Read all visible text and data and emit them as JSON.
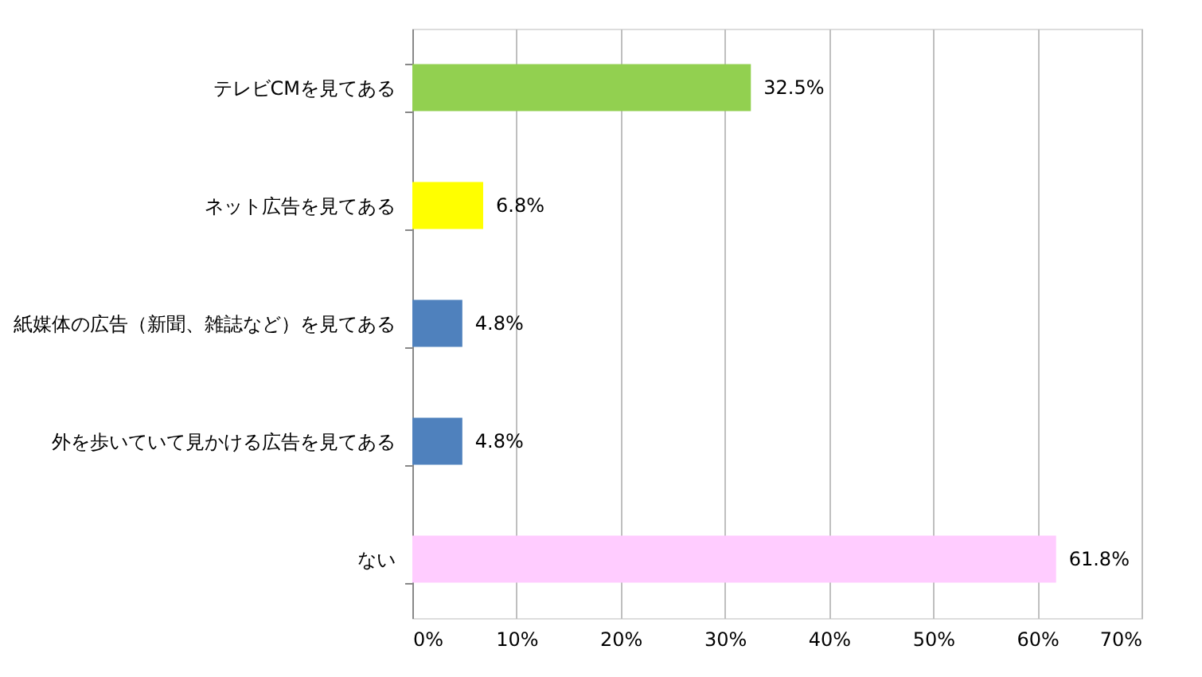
{
  "chart_data": {
    "type": "bar",
    "orientation": "horizontal",
    "categories": [
      "テレビCMを見てある",
      "ネット広告を見てある",
      "紙媒体の広告（新聞、雑誌など）を見てある",
      "外を歩いていて見かける広告を見てある",
      "ない"
    ],
    "values": [
      32.5,
      6.8,
      4.8,
      4.8,
      61.8
    ],
    "colors": [
      "#92d050",
      "#ffff00",
      "#4f81bd",
      "#4f81bd",
      "#ffccff"
    ],
    "value_labels": [
      "32.5%",
      "6.8%",
      "4.8%",
      "4.8%",
      "61.8%"
    ],
    "xlim": [
      0,
      70
    ],
    "xticks": [
      {
        "value": 0,
        "label": "0%"
      },
      {
        "value": 10,
        "label": "10%"
      },
      {
        "value": 20,
        "label": "20%"
      },
      {
        "value": 30,
        "label": "30%"
      },
      {
        "value": 40,
        "label": "40%"
      },
      {
        "value": 50,
        "label": "50%"
      },
      {
        "value": 60,
        "label": "60%"
      },
      {
        "value": 70,
        "label": "70%"
      }
    ],
    "grid": "x",
    "legend": false
  }
}
